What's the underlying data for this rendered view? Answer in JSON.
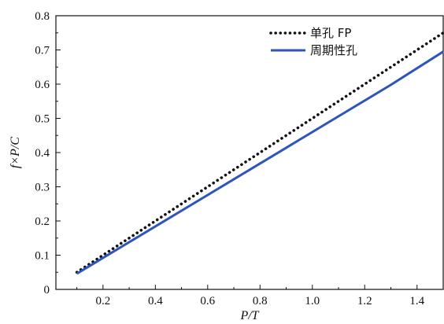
{
  "chart_data": {
    "type": "line",
    "xlabel": "P/T",
    "ylabel": "f×P/C",
    "xlim": [
      0.02,
      1.5
    ],
    "ylim": [
      0,
      0.8
    ],
    "x_ticks": [
      "0.2",
      "0.4",
      "0.6",
      "0.8",
      "1.0",
      "1.2",
      "1.4"
    ],
    "x_tick_values": [
      0.2,
      0.4,
      0.6,
      0.8,
      1.0,
      1.2,
      1.4
    ],
    "y_ticks": [
      "0",
      "0.1",
      "0.2",
      "0.3",
      "0.4",
      "0.5",
      "0.6",
      "0.7",
      "0.8"
    ],
    "y_tick_values": [
      0,
      0.1,
      0.2,
      0.3,
      0.4,
      0.5,
      0.6,
      0.7,
      0.8
    ],
    "grid": false,
    "legend_position": "top-right",
    "series": [
      {
        "name": "单孔 FP",
        "style": "dotted",
        "color": "#111111",
        "points": [
          [
            0.1,
            0.05
          ],
          [
            0.3,
            0.15
          ],
          [
            0.5,
            0.25
          ],
          [
            0.7,
            0.35
          ],
          [
            0.9,
            0.45
          ],
          [
            1.1,
            0.55
          ],
          [
            1.3,
            0.65
          ],
          [
            1.5,
            0.75
          ]
        ]
      },
      {
        "name": "周期性孔",
        "style": "solid",
        "color": "#2e56b8",
        "points": [
          [
            0.1,
            0.046
          ],
          [
            0.3,
            0.138
          ],
          [
            0.5,
            0.23
          ],
          [
            0.7,
            0.322
          ],
          [
            0.9,
            0.414
          ],
          [
            1.1,
            0.506
          ],
          [
            1.3,
            0.598
          ],
          [
            1.5,
            0.695
          ]
        ]
      }
    ]
  }
}
